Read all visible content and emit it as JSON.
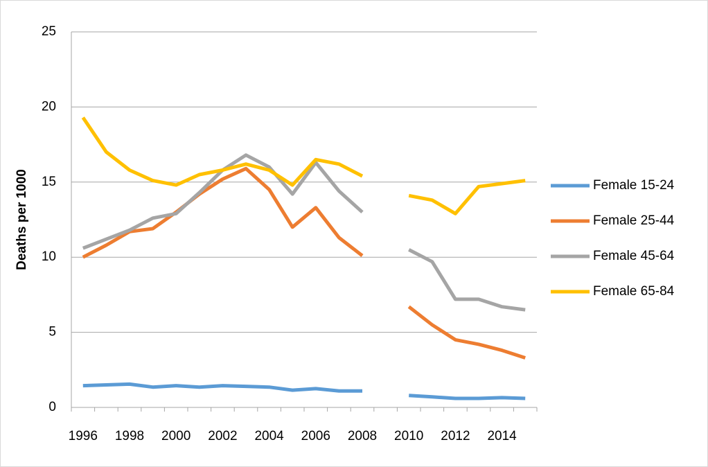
{
  "chart_data": {
    "type": "line",
    "y_label": "Deaths per 1000",
    "categories": [
      "1996",
      null,
      "1998",
      null,
      "2000",
      null,
      "2002",
      null,
      "2004",
      null,
      "2006",
      null,
      "2008",
      null,
      "2010",
      null,
      "2012",
      null,
      "2014",
      null
    ],
    "ylim": [
      0,
      25
    ],
    "yticks": [
      0,
      5,
      10,
      15,
      20,
      25
    ],
    "grid": true,
    "legend": "right",
    "series": [
      {
        "name": "Female 15-24",
        "color": "#5b9bd5",
        "values": [
          1.45,
          1.5,
          1.55,
          1.35,
          1.45,
          1.35,
          1.45,
          1.4,
          1.35,
          1.15,
          1.25,
          1.1,
          1.1,
          null,
          0.8,
          0.7,
          0.6,
          0.6,
          0.65,
          0.6
        ]
      },
      {
        "name": "Female 25-44",
        "color": "#ed7d31",
        "values": [
          10.0,
          10.8,
          11.7,
          11.9,
          13.0,
          14.2,
          15.2,
          15.9,
          14.5,
          12.0,
          13.3,
          11.3,
          10.1,
          null,
          6.7,
          5.5,
          4.5,
          4.2,
          3.8,
          3.3
        ]
      },
      {
        "name": "Female 45-64",
        "color": "#a5a5a5",
        "values": [
          10.6,
          11.2,
          11.8,
          12.6,
          12.9,
          14.3,
          15.8,
          16.8,
          16.0,
          14.2,
          16.3,
          14.4,
          13.0,
          null,
          10.5,
          9.7,
          7.2,
          7.2,
          6.7,
          6.5
        ]
      },
      {
        "name": "Female 65-84",
        "color": "#ffc000",
        "values": [
          19.3,
          17.0,
          15.8,
          15.1,
          14.8,
          15.5,
          15.8,
          16.2,
          15.8,
          14.8,
          16.5,
          16.2,
          15.4,
          null,
          14.1,
          13.8,
          12.9,
          14.7,
          14.9,
          15.1
        ]
      }
    ]
  }
}
